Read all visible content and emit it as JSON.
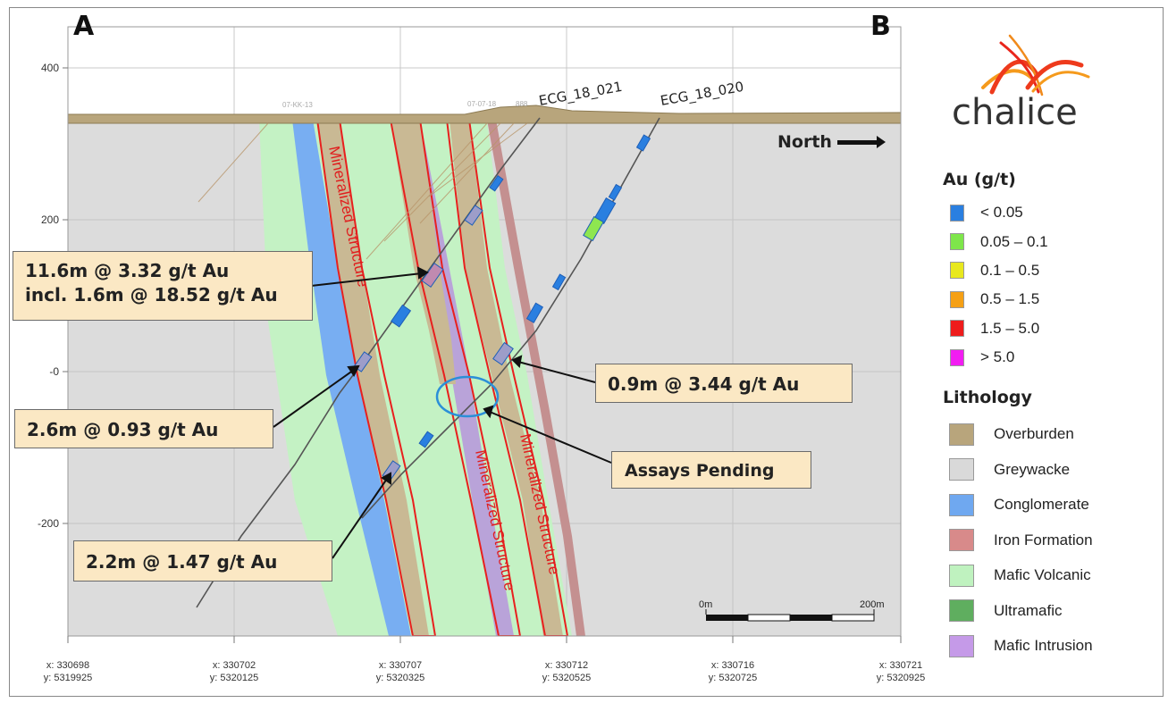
{
  "section": {
    "label_start": "A",
    "label_end": "B",
    "north_label": "North",
    "y_ticks": [
      "400",
      "200",
      "-0",
      "-200"
    ],
    "x_ticks": [
      {
        "x": "x: 330698",
        "y": "y: 5319925"
      },
      {
        "x": "x: 330702",
        "y": "y: 5320125"
      },
      {
        "x": "x: 330707",
        "y": "y: 5320325"
      },
      {
        "x": "x: 330712",
        "y": "y: 5320525"
      },
      {
        "x": "x: 330716",
        "y": "y: 5320725"
      },
      {
        "x": "x: 330721",
        "y": "y: 5320925"
      }
    ],
    "scale": {
      "start": "0m",
      "end": "200m"
    },
    "holes": [
      "ECG_18_021",
      "ECG_18_020"
    ],
    "faint_labels": [
      "07-KK-13",
      "07-07-18",
      "888"
    ],
    "structure_label": "Mineralized Structure"
  },
  "callouts": {
    "c1_line1": "11.6m @ 3.32 g/t Au",
    "c1_line2": "incl. 1.6m @ 18.52 g/t Au",
    "c2": "2.6m @ 0.93 g/t Au",
    "c3": "2.2m @ 1.47 g/t Au",
    "c4": "0.9m @ 3.44 g/t Au",
    "c5": "Assays Pending"
  },
  "logo": {
    "text": "chalice"
  },
  "legend": {
    "au_title": "Au (g/t)",
    "au_items": [
      {
        "label": "< 0.05",
        "color": "#2a7fe0"
      },
      {
        "label": "0.05 – 0.1",
        "color": "#7ee64a"
      },
      {
        "label": "0.1 – 0.5",
        "color": "#e8e81e"
      },
      {
        "label": "0.5 – 1.5",
        "color": "#f5a015"
      },
      {
        "label": "1.5 – 5.0",
        "color": "#ee1c1c"
      },
      {
        "label": "> 5.0",
        "color": "#f21cf2"
      }
    ],
    "lith_title": "Lithology",
    "lith_items": [
      {
        "label": "Overburden",
        "color": "#b8a57c"
      },
      {
        "label": "Greywacke",
        "color": "#d9d9d9"
      },
      {
        "label": "Conglomerate",
        "color": "#6fa8f0"
      },
      {
        "label": "Iron Formation",
        "color": "#d88a8a"
      },
      {
        "label": "Mafic Volcanic",
        "color": "#bff2bf"
      },
      {
        "label": "Ultramafic",
        "color": "#5fae5f"
      },
      {
        "label": "Mafic Intrusion",
        "color": "#c59ae8"
      }
    ]
  }
}
